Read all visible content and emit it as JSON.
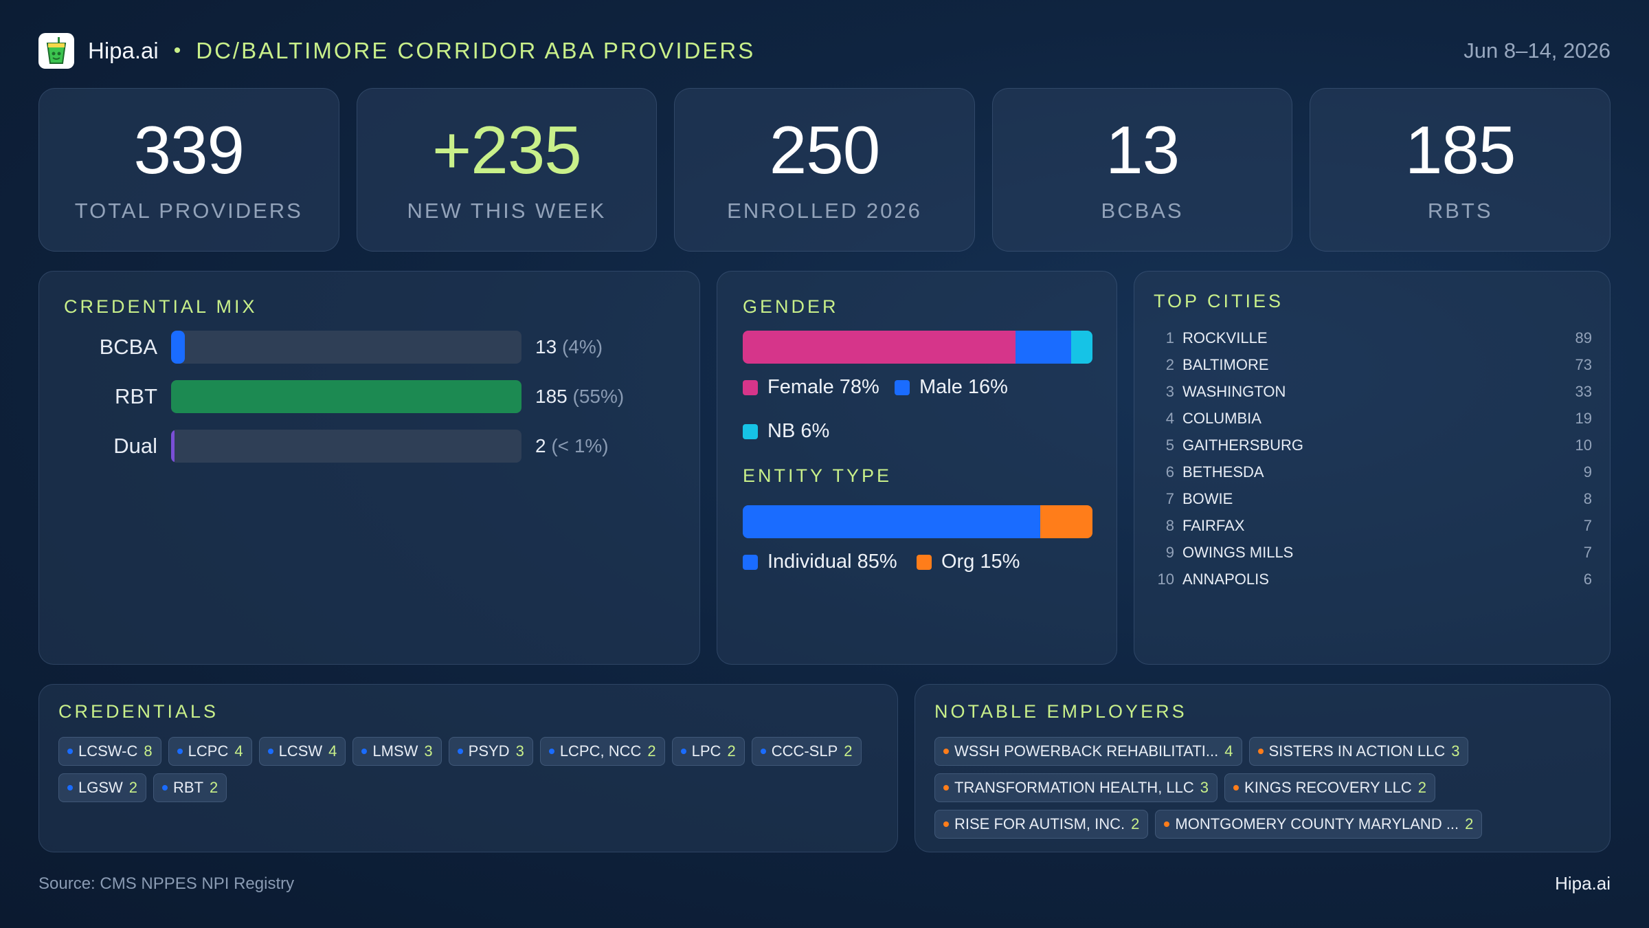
{
  "header": {
    "brand": "Hipa.ai",
    "separator": "•",
    "title": "DC/BALTIMORE CORRIDOR ABA PROVIDERS",
    "date_range": "Jun 8–14, 2026"
  },
  "kpis": [
    {
      "value": "339",
      "label": "TOTAL PROVIDERS"
    },
    {
      "value": "+235",
      "label": "NEW THIS WEEK"
    },
    {
      "value": "250",
      "label": "ENROLLED 2026"
    },
    {
      "value": "13",
      "label": "BCBAS"
    },
    {
      "value": "185",
      "label": "RBTS"
    }
  ],
  "credential_mix": {
    "title": "CREDENTIAL MIX",
    "rows": [
      {
        "label": "BCBA",
        "count": "13",
        "pct": "(4%)",
        "fraction": 0.04,
        "color": "#1a6cff"
      },
      {
        "label": "RBT",
        "count": "185",
        "pct": "(55%)",
        "fraction": 1.0,
        "color": "#1c8a52"
      },
      {
        "label": "Dual",
        "count": "2",
        "pct": "(< 1%)",
        "fraction": 0.01,
        "color": "#7a4fd6"
      }
    ]
  },
  "gender": {
    "title": "GENDER",
    "segments": [
      {
        "label": "Female 78%",
        "share": 78,
        "color": "#d6358a"
      },
      {
        "label": "Male 16%",
        "share": 16,
        "color": "#1a6cff"
      },
      {
        "label": "NB 6%",
        "share": 6,
        "color": "#16c3e6"
      }
    ]
  },
  "entity_type": {
    "title": "ENTITY TYPE",
    "segments": [
      {
        "label": "Individual 85%",
        "share": 85,
        "color": "#1a6cff"
      },
      {
        "label": "Org 15%",
        "share": 15,
        "color": "#ff7d1a"
      }
    ]
  },
  "top_cities": {
    "title": "TOP CITIES",
    "rows": [
      {
        "rank": "1",
        "name": "ROCKVILLE",
        "count": "89"
      },
      {
        "rank": "2",
        "name": "BALTIMORE",
        "count": "73"
      },
      {
        "rank": "3",
        "name": "WASHINGTON",
        "count": "33"
      },
      {
        "rank": "4",
        "name": "COLUMBIA",
        "count": "19"
      },
      {
        "rank": "5",
        "name": "GAITHERSBURG",
        "count": "10"
      },
      {
        "rank": "6",
        "name": "BETHESDA",
        "count": "9"
      },
      {
        "rank": "7",
        "name": "BOWIE",
        "count": "8"
      },
      {
        "rank": "8",
        "name": "FAIRFAX",
        "count": "7"
      },
      {
        "rank": "9",
        "name": "OWINGS MILLS",
        "count": "7"
      },
      {
        "rank": "10",
        "name": "ANNAPOLIS",
        "count": "6"
      }
    ]
  },
  "credentials": {
    "title": "CREDENTIALS",
    "dot_color": "#1a6cff",
    "chips": [
      {
        "label": "LCSW-C",
        "count": "8"
      },
      {
        "label": "LCPC",
        "count": "4"
      },
      {
        "label": "LCSW",
        "count": "4"
      },
      {
        "label": "LMSW",
        "count": "3"
      },
      {
        "label": "PSYD",
        "count": "3"
      },
      {
        "label": "LCPC, NCC",
        "count": "2"
      },
      {
        "label": "LPC",
        "count": "2"
      },
      {
        "label": "CCC-SLP",
        "count": "2"
      },
      {
        "label": "LGSW",
        "count": "2"
      },
      {
        "label": "RBT",
        "count": "2"
      }
    ]
  },
  "employers": {
    "title": "NOTABLE EMPLOYERS",
    "dot_color": "#ff7d1a",
    "chips": [
      {
        "label": "WSSH POWERBACK REHABILITATI...",
        "count": "4"
      },
      {
        "label": "SISTERS IN ACTION LLC",
        "count": "3"
      },
      {
        "label": "TRANSFORMATION HEALTH, LLC",
        "count": "3"
      },
      {
        "label": "KINGS RECOVERY LLC",
        "count": "2"
      },
      {
        "label": "RISE FOR AUTISM, INC.",
        "count": "2"
      },
      {
        "label": "MONTGOMERY COUNTY MARYLAND ...",
        "count": "2"
      }
    ]
  },
  "footer": {
    "source": "Source: CMS NPPES NPI Registry",
    "brand": "Hipa.ai"
  },
  "colors": {
    "accent": "#c9f08a",
    "background": "#0f2440"
  },
  "icons": {
    "logo": "cup-drink-icon"
  }
}
